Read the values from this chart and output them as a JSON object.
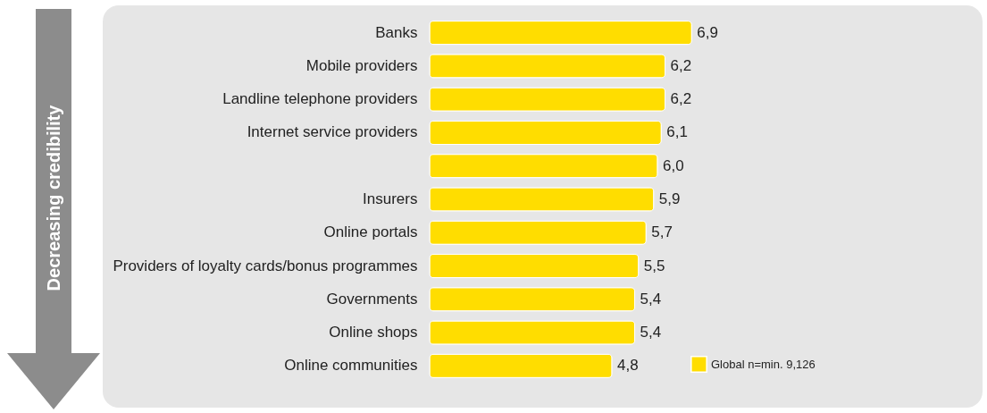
{
  "chart_data": {
    "type": "bar",
    "orientation": "horizontal",
    "categories": [
      "Banks",
      "Mobile providers",
      "Landline telephone providers",
      "Internet service providers",
      null,
      "Insurers",
      "Online portals",
      "Providers of loyalty cards/bonus programmes",
      "Governments",
      "Online shops",
      "Online communities"
    ],
    "series": [
      {
        "name": "Global n=min. 9,126",
        "color": "#ffdd00",
        "values": [
          6.9,
          6.2,
          6.2,
          6.1,
          6.0,
          5.9,
          5.7,
          5.5,
          5.4,
          5.4,
          4.8
        ],
        "value_labels": [
          "6,9",
          "6,2",
          "6,2",
          "6,1",
          "6,0",
          "5,9",
          "5,7",
          "5,5",
          "5,4",
          "5,4",
          "4,8"
        ]
      }
    ],
    "annotations": [
      "Decreasing credibility"
    ],
    "legend": "bottom right",
    "tick_labels": "y"
  }
}
